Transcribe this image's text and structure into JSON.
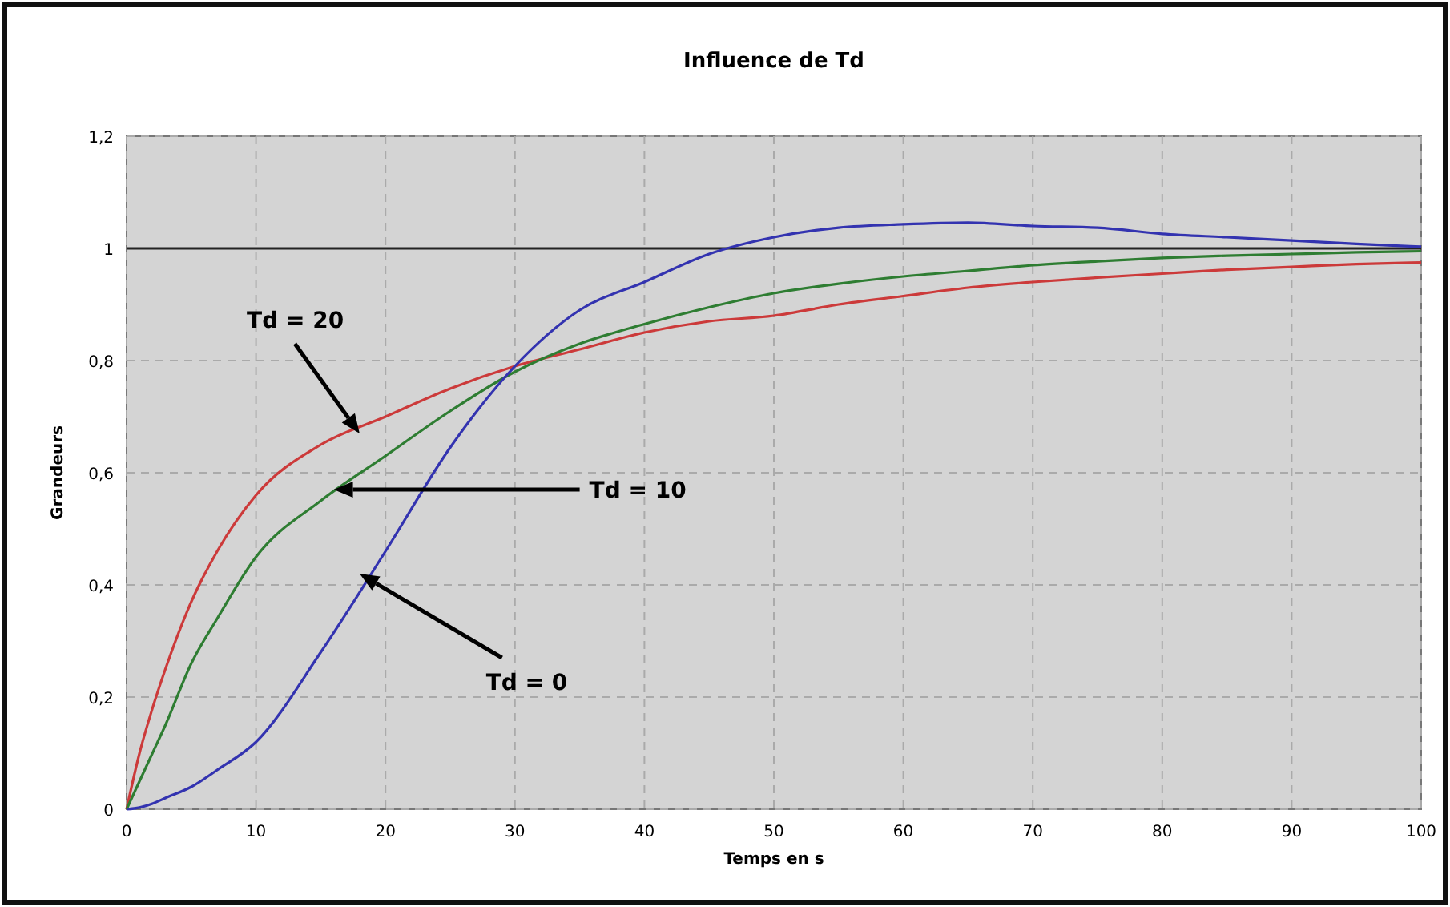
{
  "chart_data": {
    "type": "line",
    "title": "Influence de Td",
    "xlabel": "Temps en s",
    "ylabel": "Grandeurs",
    "xlim": [
      0,
      100
    ],
    "xticks": [
      0,
      10,
      20,
      30,
      40,
      50,
      60,
      70,
      80,
      90,
      100
    ],
    "ylim": [
      0,
      1.2
    ],
    "yticks": [
      0,
      {
        "value": 0.2,
        "label": "0,2"
      },
      {
        "value": 0.4,
        "label": "0,4"
      },
      {
        "value": 0.6,
        "label": "0,6"
      },
      {
        "value": 0.8,
        "label": "0,8"
      },
      1,
      {
        "value": 1.2,
        "label": "1,2"
      }
    ],
    "grid": true,
    "legend": false,
    "marker": "none",
    "line_style": "solid",
    "x": [
      0,
      1,
      2,
      3,
      5,
      7,
      10,
      15,
      20,
      25,
      30,
      35,
      40,
      45,
      50,
      55,
      60,
      65,
      70,
      75,
      80,
      85,
      90,
      95,
      100
    ],
    "series": [
      {
        "color": "#cc3a3a",
        "values": [
          0,
          0.1,
          0.18,
          0.25,
          0.37,
          0.46,
          0.56,
          0.65,
          0.7,
          0.75,
          0.79,
          0.82,
          0.85,
          0.87,
          0.88,
          0.9,
          0.915,
          0.93,
          0.94,
          0.948,
          0.955,
          0.962,
          0.967,
          0.972,
          0.975
        ]
      },
      {
        "color": "#2e7d32",
        "values": [
          0,
          0.05,
          0.1,
          0.15,
          0.26,
          0.34,
          0.45,
          0.55,
          0.63,
          0.71,
          0.78,
          0.83,
          0.865,
          0.895,
          0.92,
          0.937,
          0.95,
          0.96,
          0.97,
          0.977,
          0.983,
          0.987,
          0.99,
          0.993,
          0.995
        ]
      },
      {
        "color": "#3333b0",
        "values": [
          0,
          0.003,
          0.01,
          0.02,
          0.04,
          0.07,
          0.12,
          0.28,
          0.46,
          0.645,
          0.79,
          0.89,
          0.94,
          0.99,
          1.02,
          1.037,
          1.043,
          1.046,
          1.04,
          1.037,
          1.026,
          1.02,
          1.014,
          1.008,
          1.003
        ]
      }
    ],
    "ref_lines": [
      {
        "axis": "y",
        "value": 1,
        "color": "#222222"
      }
    ],
    "annotations": [
      "Td = 20",
      "Td = 10",
      "Td = 0"
    ]
  }
}
